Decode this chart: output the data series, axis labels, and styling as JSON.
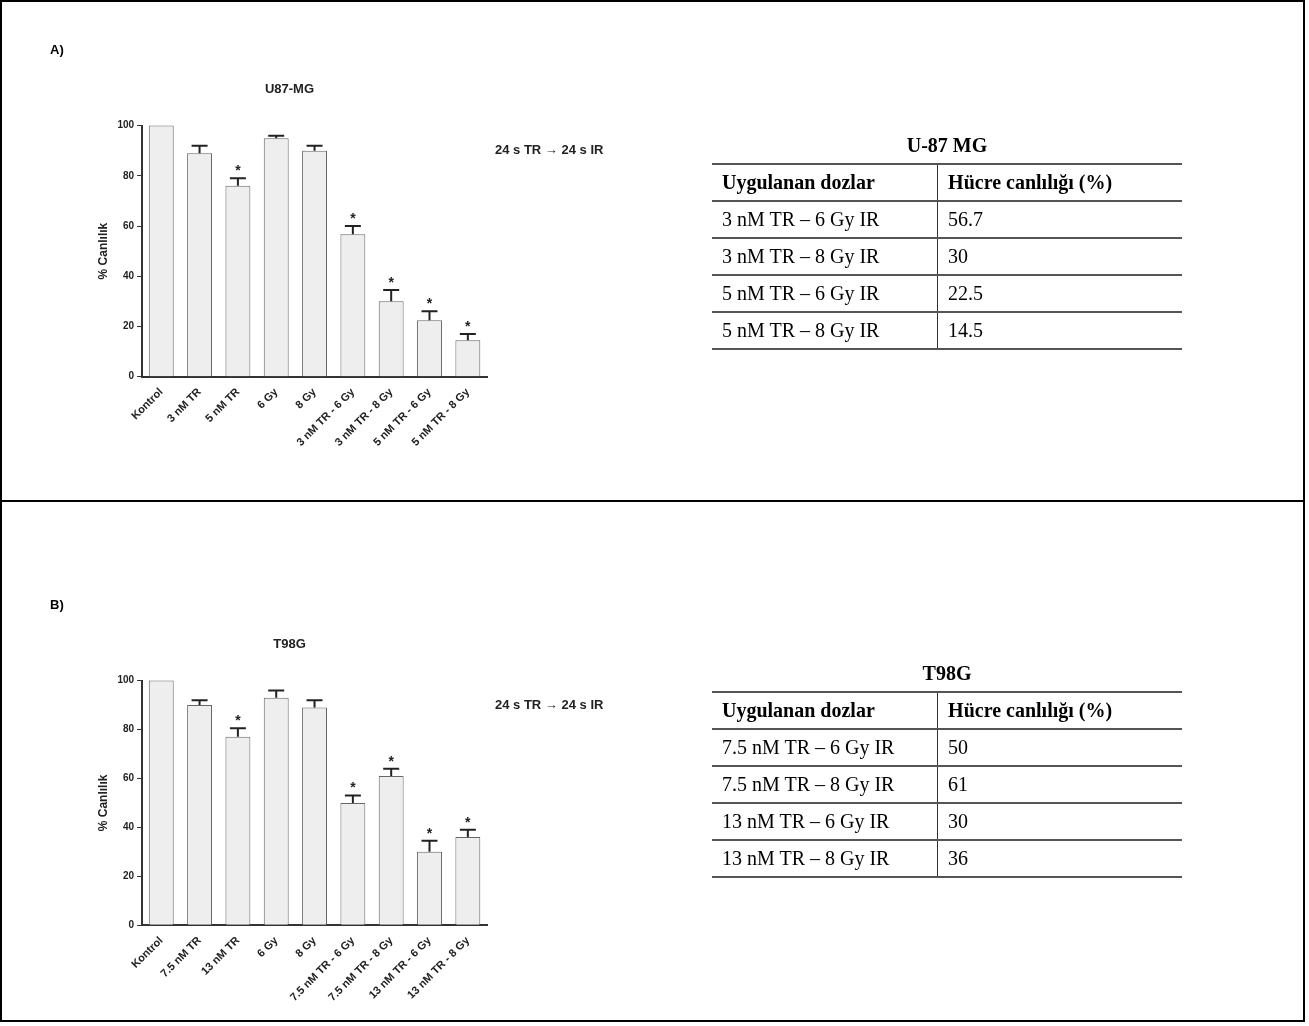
{
  "chart_data": [
    {
      "type": "bar",
      "title": "U87-MG",
      "ylabel": "% Canlılık",
      "categories": [
        "Kontrol",
        "3 nM TR",
        "5 nM TR",
        "6 Gy",
        "8 Gy",
        "3 nM TR - 6 Gy",
        "3 nM TR - 8 Gy",
        "5 nM TR - 6 Gy",
        "5 nM TR - 8 Gy"
      ],
      "values": [
        100,
        89,
        76,
        95,
        90,
        56.7,
        30,
        22.5,
        14.5
      ],
      "errors": [
        null,
        [
          89,
          92
        ],
        [
          76,
          79
        ],
        [
          95,
          96
        ],
        [
          90,
          92
        ],
        [
          56.7,
          60
        ],
        [
          30,
          34.5
        ],
        [
          22.5,
          26
        ],
        [
          14.5,
          17
        ]
      ],
      "color": "#eeeeee",
      "ylim": [
        0,
        100
      ],
      "yticks": [
        0,
        20,
        40,
        60,
        80,
        100
      ],
      "grid": false,
      "legend": false,
      "annotations": [
        "A)",
        "24 s TR → 24 s IR",
        {
          "text": "*",
          "x": "5 nM TR",
          "y": 76
        },
        {
          "text": "*",
          "x": "3 nM TR - 6 Gy",
          "y": 56.7
        },
        {
          "text": "*",
          "x": "3 nM TR - 8 Gy",
          "y": 30
        },
        {
          "text": "*",
          "x": "5 nM TR - 6 Gy",
          "y": 22.5
        },
        {
          "text": "*",
          "x": "5 nM TR - 8 Gy",
          "y": 14.5
        }
      ]
    },
    {
      "type": "other",
      "title": "U-87 MG",
      "annotations": [
        "Uygulanan dozlar",
        "Hücre canlılığı (%)",
        "3 nM TR – 6 Gy IR",
        "56.7",
        "3 nM TR – 8 Gy IR",
        "30",
        "5 nM TR – 6 Gy IR",
        "22.5",
        "5 nM TR – 8 Gy IR",
        "14.5"
      ]
    },
    {
      "type": "bar",
      "title": "T98G",
      "ylabel": "% Canlılık",
      "categories": [
        "Kontrol",
        "7.5 nM TR",
        "13 nM TR",
        "6 Gy",
        "8 Gy",
        "7.5 nM TR - 6 Gy",
        "7.5 nM TR - 8 Gy",
        "13 nM TR - 6 Gy",
        "13 nM TR - 8 Gy"
      ],
      "values": [
        100,
        90,
        77,
        93,
        89,
        50,
        61,
        30,
        36
      ],
      "errors": [
        null,
        [
          90,
          92
        ],
        [
          77,
          80.5
        ],
        [
          93,
          96
        ],
        [
          89,
          92
        ],
        [
          50,
          53
        ],
        [
          61,
          64
        ],
        [
          30,
          34.5
        ],
        [
          36,
          39
        ]
      ],
      "color": "#eeeeee",
      "ylim": [
        0,
        100
      ],
      "yticks": [
        0,
        20,
        40,
        60,
        80,
        100
      ],
      "grid": false,
      "legend": false,
      "annotations": [
        "B)",
        "24 s TR → 24 s IR",
        {
          "text": "*",
          "x": "13 nM TR",
          "y": 77
        },
        {
          "text": "*",
          "x": "7.5 nM TR - 6 Gy",
          "y": 50
        },
        {
          "text": "*",
          "x": "7.5 nM TR - 8 Gy",
          "y": 61
        },
        {
          "text": "*",
          "x": "13 nM TR - 6 Gy",
          "y": 30
        },
        {
          "text": "*",
          "x": "13 nM TR - 8 Gy",
          "y": 36
        }
      ]
    },
    {
      "type": "other",
      "title": "T98G",
      "annotations": [
        "Uygulanan dozlar",
        "Hücre canlılığı (%)",
        "7.5 nM TR – 6 Gy IR",
        "50",
        "7.5 nM TR – 8 Gy IR",
        "61",
        "13 nM TR – 6 Gy IR",
        "30",
        "13 nM TR – 8 Gy IR",
        "36"
      ]
    }
  ]
}
